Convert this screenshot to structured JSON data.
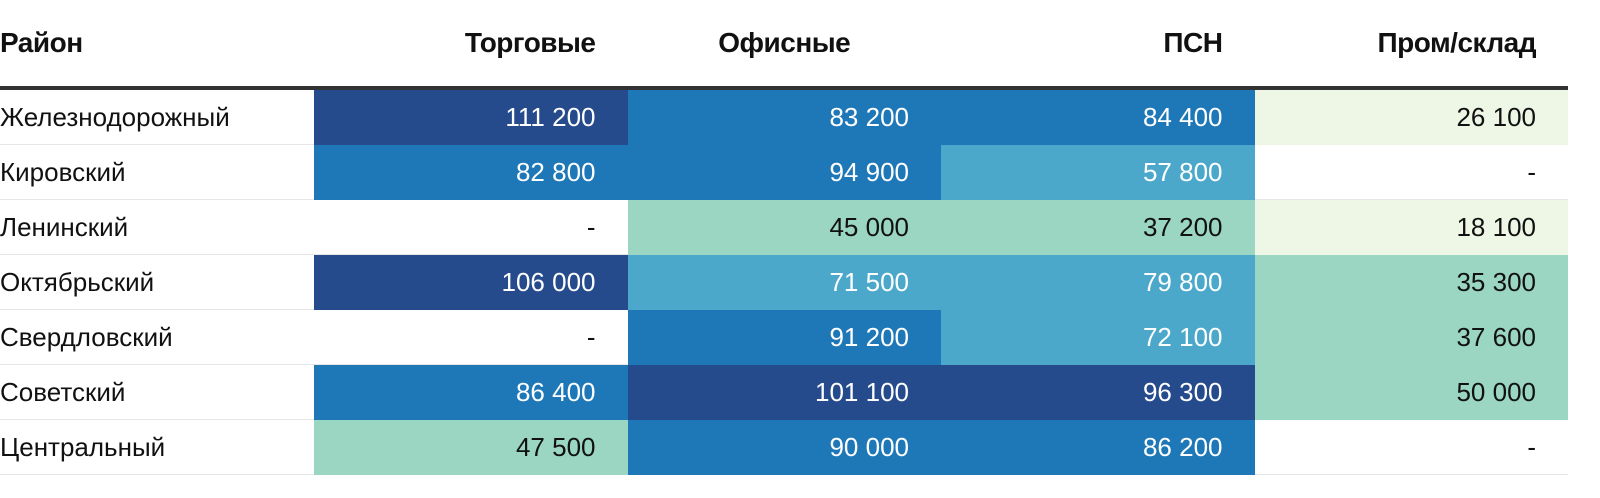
{
  "chart_data": {
    "type": "heatmap",
    "row_header": "Район",
    "columns": [
      "Торговые",
      "Офисные",
      "ПСН",
      "Пром/склад"
    ],
    "rows": [
      {
        "district": "Железнодорожный",
        "values": [
          111200,
          83200,
          84400,
          26100
        ]
      },
      {
        "district": "Кировский",
        "values": [
          82800,
          94900,
          57800,
          null
        ]
      },
      {
        "district": "Ленинский",
        "values": [
          null,
          45000,
          37200,
          18100
        ]
      },
      {
        "district": "Октябрьский",
        "values": [
          106000,
          71500,
          79800,
          35300
        ]
      },
      {
        "district": "Свердловский",
        "values": [
          null,
          91200,
          72100,
          37600
        ]
      },
      {
        "district": "Советский",
        "values": [
          86400,
          101100,
          96300,
          50000
        ]
      },
      {
        "district": "Центральный",
        "values": [
          47500,
          90000,
          86200,
          null
        ]
      }
    ],
    "missing_label": "-",
    "color_scale": [
      {
        "max": 30000,
        "color": "#eef7e6",
        "text": "#111111"
      },
      {
        "max": 55000,
        "color": "#9ad6c1",
        "text": "#111111"
      },
      {
        "max": 80000,
        "color": "#4ba8cb",
        "text": "#ffffff"
      },
      {
        "max": 95000,
        "color": "#1e78b8",
        "text": "#ffffff"
      },
      {
        "max": 999999,
        "color": "#254b8c",
        "text": "#ffffff"
      }
    ]
  }
}
